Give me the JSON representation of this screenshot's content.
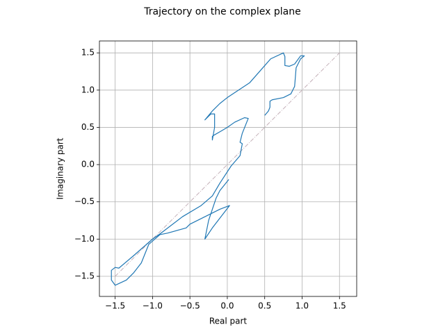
{
  "chart_data": {
    "type": "line",
    "title": "Trajectory on the complex plane",
    "xlabel": "Real part",
    "ylabel": "Imaginary part",
    "xlim": [
      -1.71,
      1.73
    ],
    "ylim": [
      -1.77,
      1.66
    ],
    "grid": true,
    "xticks": [
      {
        "value": -1.5,
        "label": "−1.5"
      },
      {
        "value": -1.0,
        "label": "−1.0"
      },
      {
        "value": -0.5,
        "label": "−0.5"
      },
      {
        "value": 0,
        "label": "0.0"
      },
      0.5,
      {
        "value": 1.0,
        "label": "1.0"
      },
      1.5
    ],
    "yticks": [
      {
        "value": -1.5,
        "label": "−1.5"
      },
      {
        "value": -1.0,
        "label": "−1.0"
      },
      {
        "value": -0.5,
        "label": "−0.5"
      },
      {
        "value": 0,
        "label": "0.0"
      },
      0.5,
      {
        "value": 1.0,
        "label": "1.0"
      },
      1.5
    ],
    "reference_line": {
      "x": [
        -1.5,
        1.5
      ],
      "y": [
        -1.5,
        1.5
      ],
      "color": "#c4b0b8"
    },
    "series": [
      {
        "color": "#1f77b4",
        "x": [
          0.02,
          -0.1,
          -0.15,
          -0.2,
          -0.25,
          -0.3,
          -0.2,
          0.03,
          -0.1,
          -0.3,
          -0.5,
          -0.55,
          -0.8,
          -0.9,
          -1.05,
          -1.15,
          -1.25,
          -1.35,
          -1.5,
          -1.55,
          -1.55,
          -1.5,
          -1.45,
          -1.25,
          -1.0,
          -0.9,
          -0.6,
          -0.35,
          -0.2,
          -0.1,
          0.05,
          0.17,
          0.2,
          0.17,
          0.2,
          0.28,
          0.23,
          0.1,
          0.0,
          -0.1,
          -0.17,
          -0.2,
          -0.2,
          -0.17,
          -0.17,
          -0.22,
          -0.3,
          -0.2,
          -0.1,
          0.0,
          0.3,
          0.58,
          0.75,
          0.77,
          0.77,
          0.83,
          0.9,
          0.98,
          1.03,
          0.98,
          0.92,
          0.9,
          0.85,
          0.75,
          0.6,
          0.57,
          0.57,
          0.55,
          0.5
        ],
        "y": [
          -0.2,
          -0.35,
          -0.45,
          -0.6,
          -0.75,
          -1.0,
          -0.85,
          -0.55,
          -0.6,
          -0.7,
          -0.8,
          -0.85,
          -0.92,
          -0.94,
          -1.07,
          -1.32,
          -1.45,
          -1.55,
          -1.62,
          -1.55,
          -1.42,
          -1.38,
          -1.39,
          -1.22,
          -1.0,
          -0.93,
          -0.7,
          -0.55,
          -0.42,
          -0.25,
          -0.02,
          0.12,
          0.28,
          0.3,
          0.42,
          0.62,
          0.63,
          0.57,
          0.5,
          0.44,
          0.4,
          0.38,
          0.33,
          0.5,
          0.68,
          0.68,
          0.6,
          0.72,
          0.82,
          0.9,
          1.1,
          1.42,
          1.5,
          1.45,
          1.33,
          1.32,
          1.35,
          1.46,
          1.46,
          1.42,
          1.3,
          1.05,
          0.95,
          0.9,
          0.87,
          0.85,
          0.77,
          0.72,
          0.66
        ]
      }
    ]
  }
}
